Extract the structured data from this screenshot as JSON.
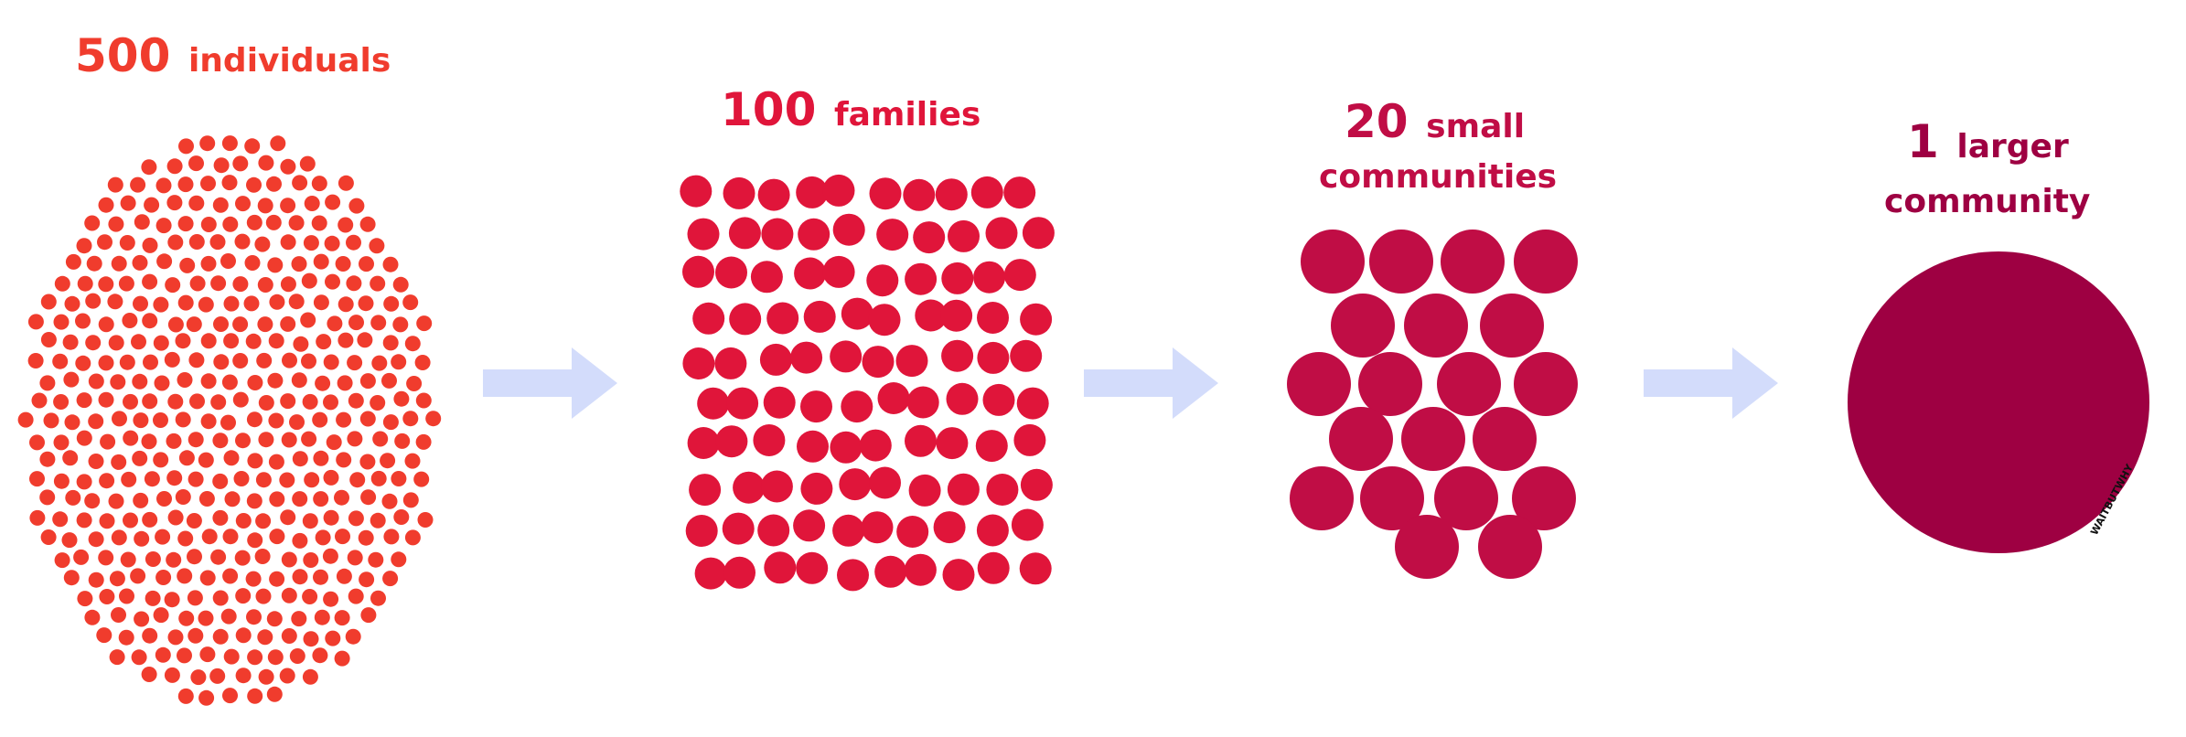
{
  "stages": [
    {
      "count": "500",
      "label": "individuals",
      "color": "#f03c2d",
      "dots": 500
    },
    {
      "count": "100",
      "label": "families",
      "color": "#e0153a",
      "dots": 100
    },
    {
      "count": "20",
      "label": "small",
      "label_line2": "communities",
      "color": "#c00d45",
      "dots": 20
    },
    {
      "count": "1",
      "label": "larger",
      "label_line2": "community",
      "color": "#9e0042",
      "dots": 1
    }
  ],
  "arrow_color": "#d3dcfb",
  "watermark": "WAITBUTWHY"
}
